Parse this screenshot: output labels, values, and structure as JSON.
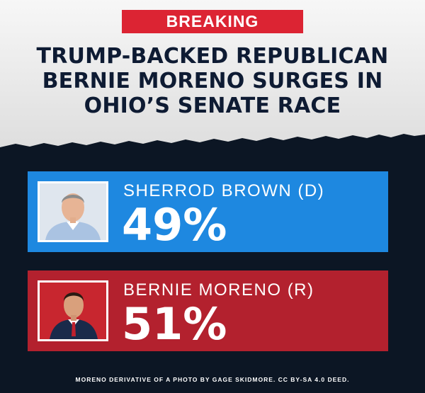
{
  "badge": "BREAKING",
  "headline": [
    "TRUMP-BACKED REPUBLICAN",
    "BERNIE MORENO SURGES IN",
    "OHIO’S SENATE RACE"
  ],
  "candidates": [
    {
      "name": "SHERROD BROWN (D)",
      "percent": "49%",
      "color": "#1e88e0"
    },
    {
      "name": "BERNIE MORENO (R)",
      "percent": "51%",
      "color": "#b3212e"
    }
  ],
  "credit": "MORENO DERIVATIVE OF A PHOTO BY GAGE SKIDMORE. CC BY-SA 4.0 DEED."
}
